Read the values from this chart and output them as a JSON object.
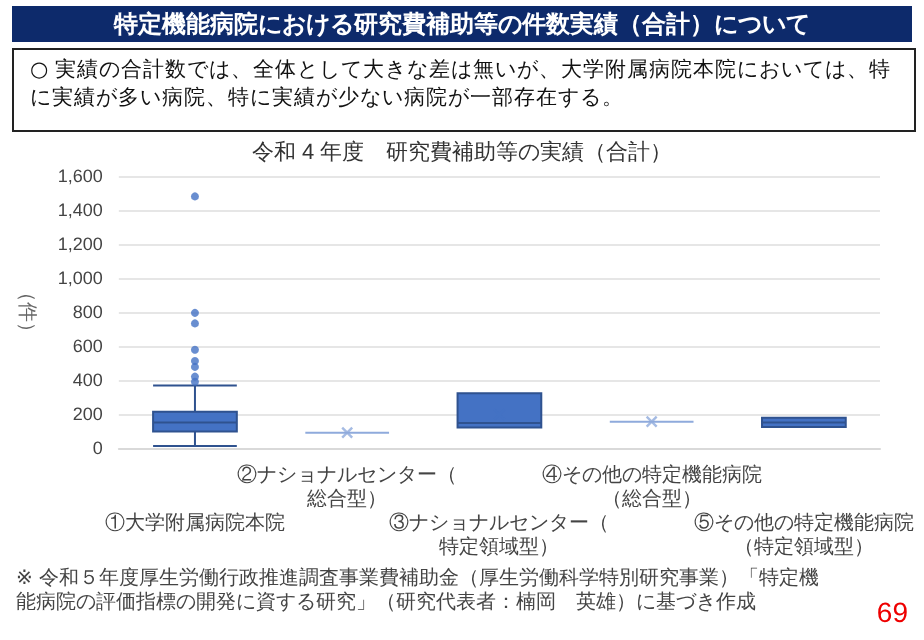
{
  "chart_data": {
    "type": "box",
    "title": "令和 4 年度　研究費補助等の実績（合計）",
    "subtitle": "○ 実績の合計数では、全体として大きな差は無いが、大学附属病院本院においては、特に実績が多い病院、特に実績が少ない病院が一部存在する。",
    "annotations": [
      "特定機能病院における研究費補助等の件数実績（合計）について",
      "※ 令和５年度厚生労働行政推進調査事業費補助金（厚生労働科学特別研究事業）「特定機能病院の評価指標の開発に資する研究」（研究代表者：楠岡　英雄）に基づき作成",
      "69"
    ],
    "ylabel": "（件）",
    "categories": [
      "①大学附属病院本院",
      "②ナショナルセンター（総合型）",
      "③ナショナルセンター（特定領域型）",
      "④その他の特定機能病院（総合型）",
      "⑤その他の特定機能病院（特定領域型）"
    ],
    "boxes": [
      {
        "low": 12,
        "q1": 97,
        "median": 150,
        "q3": 213,
        "high": 368,
        "outliers": [
          1480,
          795,
          733,
          578,
          512,
          477,
          420,
          390
        ]
      },
      {
        "low": 90,
        "q1": 90,
        "median": 90,
        "q3": 90,
        "high": 90,
        "mean": 90
      },
      {
        "low": 120,
        "q1": 120,
        "median": 147,
        "q3": 322,
        "high": 322,
        "mean": 198
      },
      {
        "low": 155,
        "q1": 155,
        "median": 155,
        "q3": 155,
        "high": 155,
        "mean": 155
      },
      {
        "low": 124,
        "q1": 124,
        "median": 150,
        "q3": 178,
        "high": 178
      }
    ],
    "colors": [
      "#4472c4",
      "#8faadc",
      "#4472c4",
      "#8faadc",
      "#4472c4"
    ],
    "ylim": [
      0,
      1600
    ],
    "yticks": [
      0,
      200,
      400,
      600,
      800,
      {
        "value": 1000,
        "label": "1,000"
      },
      {
        "value": 1200,
        "label": "1,200"
      },
      {
        "value": 1400,
        "label": "1,400"
      },
      {
        "value": 1600,
        "label": "1,600"
      }
    ],
    "grid": "y"
  }
}
